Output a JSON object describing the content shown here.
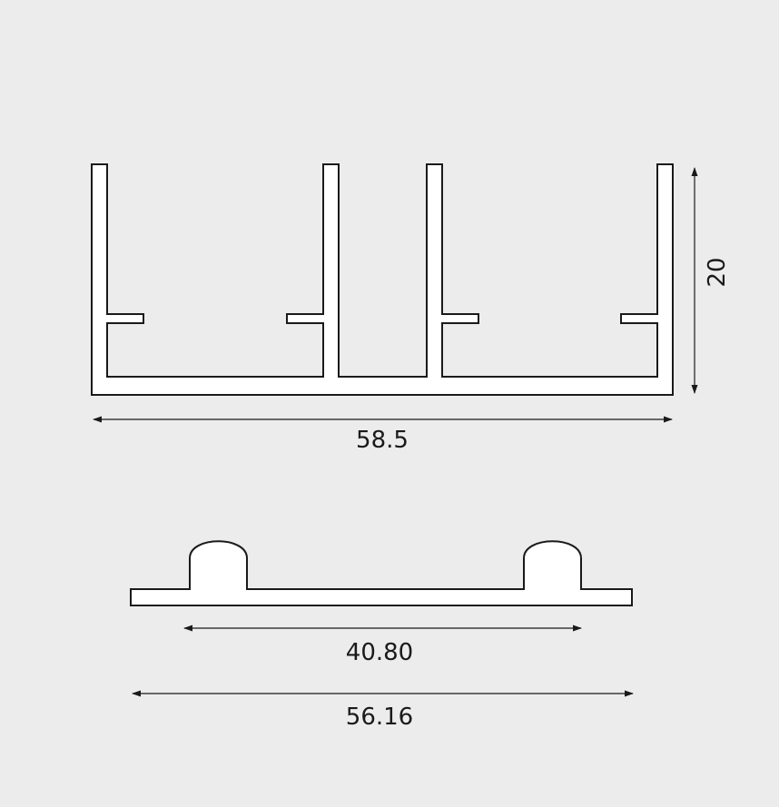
{
  "top_profile": {
    "width_label": "58.5",
    "height_label": "20"
  },
  "bottom_profile": {
    "inner_width_label": "40.80",
    "outer_width_label": "56.16"
  }
}
